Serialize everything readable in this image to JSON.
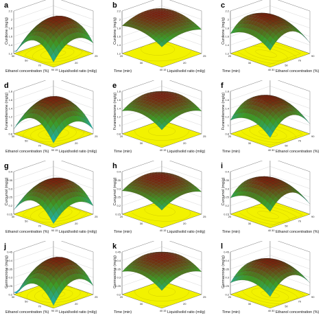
{
  "chart_data": [
    {
      "type": "surface3d",
      "label": "a",
      "zlabel": "Curdione (mg/g)",
      "xlabel": "Ethanol concentration (%)",
      "ylabel": "Liquid/solid ratio (ml/g)",
      "zticks": [
        "2.2",
        "2",
        "1.8",
        "1.6",
        "1.4",
        "1.2"
      ],
      "xticks": [
        "30",
        "50",
        "70",
        "90"
      ],
      "yticks": [
        "15",
        "20",
        "25"
      ],
      "surface": {
        "peak": [
          0.45,
          0.55
        ],
        "curv": [
          1.0,
          0.7
        ],
        "zmin": 0.05,
        "zmax": 0.85
      }
    },
    {
      "type": "surface3d",
      "label": "b",
      "zlabel": "Curdione (mg/g)",
      "xlabel": "Time (min)",
      "ylabel": "Liquid/solid ratio (ml/g)",
      "zticks": [
        "2.2",
        "2",
        "1.8",
        "1.6",
        "1.4",
        "1.2"
      ],
      "xticks": [
        "20",
        "30",
        "40"
      ],
      "yticks": [
        "15",
        "20",
        "25"
      ],
      "surface": {
        "peak": [
          0.7,
          0.6
        ],
        "curv": [
          0.4,
          0.4
        ],
        "zmin": 0.35,
        "zmax": 0.85
      }
    },
    {
      "type": "surface3d",
      "label": "c",
      "zlabel": "Curdione (mg/g)",
      "xlabel": "Time (min)",
      "ylabel": "Ethanol concentration (%)",
      "zticks": [
        "2.2",
        "2",
        "1.8",
        "1.6",
        "1.4",
        "1.2"
      ],
      "xticks": [
        "20",
        "30",
        "40"
      ],
      "yticks": [
        "30",
        "50",
        "70",
        "90"
      ],
      "surface": {
        "peak": [
          0.55,
          0.45
        ],
        "curv": [
          0.5,
          1.0
        ],
        "zmin": 0.25,
        "zmax": 0.9
      }
    },
    {
      "type": "surface3d",
      "label": "d",
      "zlabel": "Furanodienone (mg/g)",
      "xlabel": "Ethanol concentration (%)",
      "ylabel": "Liquid/solid ratio (ml/g)",
      "zticks": [
        "1.8",
        "1.6",
        "1.4",
        "1.2",
        "1",
        "0.8"
      ],
      "xticks": [
        "30",
        "50",
        "70",
        "90"
      ],
      "yticks": [
        "15",
        "20",
        "25"
      ],
      "surface": {
        "peak": [
          0.5,
          0.5
        ],
        "curv": [
          1.0,
          0.8
        ],
        "zmin": 0.1,
        "zmax": 0.85
      }
    },
    {
      "type": "surface3d",
      "label": "e",
      "zlabel": "Furanodienone (mg/g)",
      "xlabel": "Time (min)",
      "ylabel": "Liquid/solid ratio (ml/g)",
      "zticks": [
        "1.8",
        "1.6",
        "1.4",
        "1.2",
        "1",
        "0.8"
      ],
      "xticks": [
        "20",
        "30",
        "40"
      ],
      "yticks": [
        "15",
        "20",
        "25"
      ],
      "surface": {
        "peak": [
          0.6,
          0.6
        ],
        "curv": [
          0.5,
          0.5
        ],
        "zmin": 0.3,
        "zmax": 0.85
      }
    },
    {
      "type": "surface3d",
      "label": "f",
      "zlabel": "Furanodienone (mg/g)",
      "xlabel": "Time (min)",
      "ylabel": "Ethanol concentration (%)",
      "zticks": [
        "1.8",
        "1.6",
        "1.4",
        "1.2",
        "1",
        "0.8"
      ],
      "xticks": [
        "20",
        "30",
        "40"
      ],
      "yticks": [
        "30",
        "50",
        "70",
        "90"
      ],
      "surface": {
        "peak": [
          0.55,
          0.5
        ],
        "curv": [
          0.6,
          1.0
        ],
        "zmin": 0.2,
        "zmax": 0.85
      }
    },
    {
      "type": "surface3d",
      "label": "g",
      "zlabel": "Curcumol (mg/g)",
      "xlabel": "Ethanol concentration (%)",
      "ylabel": "Liquid/solid ratio (ml/g)",
      "zticks": [
        "0.4",
        "0.35",
        "0.3",
        "0.25",
        "0.2",
        "0.15"
      ],
      "xticks": [
        "30",
        "50",
        "70",
        "90"
      ],
      "yticks": [
        "15",
        "20",
        "25"
      ],
      "surface": {
        "peak": [
          0.5,
          0.55
        ],
        "curv": [
          1.0,
          0.7
        ],
        "zmin": 0.1,
        "zmax": 0.8
      }
    },
    {
      "type": "surface3d",
      "label": "h",
      "zlabel": "Curcumol (mg/g)",
      "xlabel": "Time (min)",
      "ylabel": "Liquid/solid ratio (ml/g)",
      "zticks": [
        "0.4",
        "0.35",
        "0.3",
        "0.25",
        "0.2",
        "0.15"
      ],
      "xticks": [
        "20",
        "30",
        "40"
      ],
      "yticks": [
        "15",
        "20",
        "25"
      ],
      "surface": {
        "peak": [
          0.65,
          0.6
        ],
        "curv": [
          0.4,
          0.5
        ],
        "zmin": 0.3,
        "zmax": 0.8
      }
    },
    {
      "type": "surface3d",
      "label": "i",
      "zlabel": "Curcumol (mg/g)",
      "xlabel": "Time (min)",
      "ylabel": "Ethanol concentration (%)",
      "zticks": [
        "0.4",
        "0.35",
        "0.3",
        "0.25",
        "0.2",
        "0.15"
      ],
      "xticks": [
        "20",
        "30",
        "40"
      ],
      "yticks": [
        "30",
        "50",
        "70",
        "90"
      ],
      "surface": {
        "peak": [
          0.5,
          0.45
        ],
        "curv": [
          0.5,
          1.0
        ],
        "zmin": 0.2,
        "zmax": 0.85
      }
    },
    {
      "type": "surface3d",
      "label": "j",
      "zlabel": "Germacrone (mg/g)",
      "xlabel": "Ethanol concentration (%)",
      "ylabel": "Liquid/solid ratio (ml/g)",
      "zticks": [
        "0.45",
        "0.4",
        "0.35",
        "0.3",
        "0.25",
        "0.2"
      ],
      "xticks": [
        "30",
        "50",
        "70",
        "90"
      ],
      "yticks": [
        "15",
        "20",
        "25"
      ],
      "surface": {
        "peak": [
          0.45,
          0.55
        ],
        "curv": [
          1.0,
          0.8
        ],
        "zmin": 0.05,
        "zmax": 0.85
      }
    },
    {
      "type": "surface3d",
      "label": "k",
      "zlabel": "Germacrone (mg/g)",
      "xlabel": "Time (min)",
      "ylabel": "Liquid/solid ratio (ml/g)",
      "zticks": [
        "0.45",
        "0.4",
        "0.35",
        "0.3",
        "0.25",
        "0.2"
      ],
      "xticks": [
        "20",
        "30",
        "40"
      ],
      "yticks": [
        "15",
        "20",
        "25"
      ],
      "surface": {
        "peak": [
          0.6,
          0.6
        ],
        "curv": [
          0.5,
          0.5
        ],
        "zmin": 0.3,
        "zmax": 0.85
      }
    },
    {
      "type": "surface3d",
      "label": "l",
      "zlabel": "Germacrone (mg/g)",
      "xlabel": "Time (min)",
      "ylabel": "Ethanol concentration (%)",
      "zticks": [
        "0.45",
        "0.4",
        "0.35",
        "0.3",
        "0.25",
        "0.2"
      ],
      "xticks": [
        "20",
        "30",
        "40"
      ],
      "yticks": [
        "30",
        "50",
        "70",
        "90"
      ],
      "surface": {
        "peak": [
          0.5,
          0.5
        ],
        "curv": [
          0.6,
          1.0
        ],
        "zmin": 0.2,
        "zmax": 0.8
      }
    }
  ],
  "colors": {
    "floor": "#f2f200",
    "floorContour": "#c9c400",
    "surfaceLow": "#19b3c6",
    "surfaceMid": "#3d9a25",
    "surfaceHigh": "#7a1f0d",
    "mesh": "#222222",
    "axis": "#555555"
  }
}
